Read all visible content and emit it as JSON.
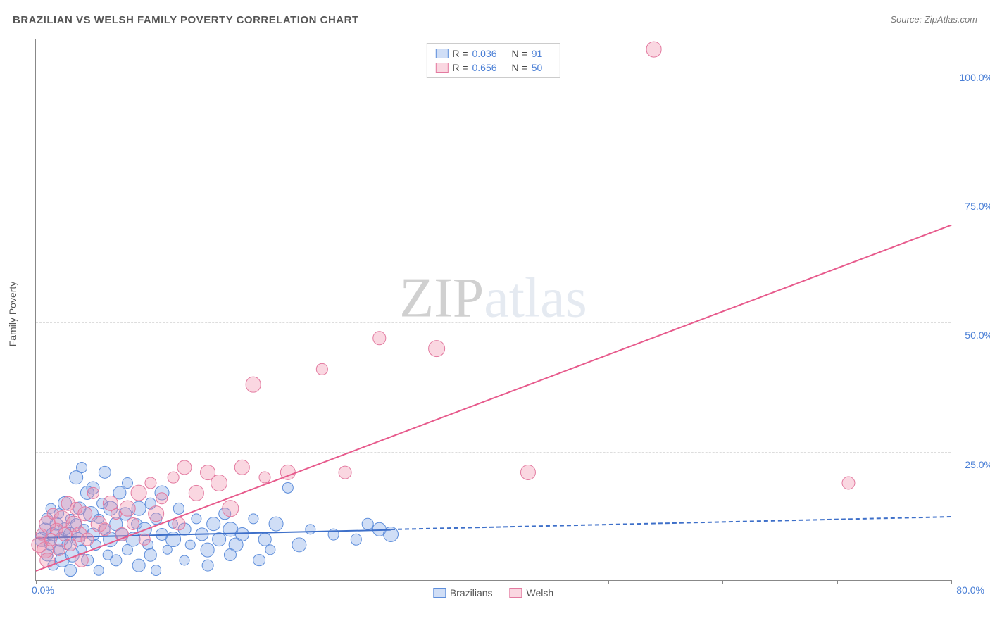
{
  "title": "BRAZILIAN VS WELSH FAMILY POVERTY CORRELATION CHART",
  "source_label": "Source: ZipAtlas.com",
  "ylabel": "Family Poverty",
  "watermark": {
    "zip": "ZIP",
    "atlas": "atlas"
  },
  "chart": {
    "type": "scatter",
    "background_color": "#ffffff",
    "grid_color": "#dddddd",
    "axis_color": "#888888",
    "xlim": [
      0,
      80
    ],
    "ylim": [
      0,
      105
    ],
    "xtick_positions": [
      0,
      10,
      20,
      30,
      40,
      50,
      60,
      70,
      80
    ],
    "xtick_labels_shown": {
      "0": "0.0%",
      "80": "80.0%"
    },
    "ytick_positions": [
      25,
      50,
      75,
      100
    ],
    "ytick_labels": [
      "25.0%",
      "50.0%",
      "75.0%",
      "100.0%"
    ],
    "label_color": "#4a7fd6",
    "label_fontsize": 14,
    "series": [
      {
        "name": "Brazilians",
        "fill_color": "rgba(120,160,230,0.35)",
        "stroke_color": "#5e8edb",
        "marker_radius_base": 7,
        "points": [
          [
            0.5,
            8
          ],
          [
            0.8,
            10
          ],
          [
            1,
            12
          ],
          [
            1,
            5
          ],
          [
            1.2,
            7
          ],
          [
            1.3,
            14
          ],
          [
            1.5,
            9
          ],
          [
            1.5,
            3
          ],
          [
            1.8,
            11
          ],
          [
            2,
            6
          ],
          [
            2,
            13
          ],
          [
            2.2,
            8
          ],
          [
            2.3,
            4
          ],
          [
            2.5,
            15
          ],
          [
            2.5,
            10
          ],
          [
            2.7,
            7
          ],
          [
            3,
            12
          ],
          [
            3,
            2
          ],
          [
            3,
            9
          ],
          [
            3.2,
            5
          ],
          [
            3.5,
            20
          ],
          [
            3.5,
            11
          ],
          [
            3.7,
            8
          ],
          [
            3.8,
            14
          ],
          [
            4,
            6
          ],
          [
            4,
            22
          ],
          [
            4.2,
            10
          ],
          [
            4.5,
            17
          ],
          [
            4.5,
            4
          ],
          [
            4.8,
            13
          ],
          [
            5,
            9
          ],
          [
            5,
            18
          ],
          [
            5.2,
            7
          ],
          [
            5.5,
            2
          ],
          [
            5.5,
            12
          ],
          [
            5.8,
            15
          ],
          [
            6,
            10
          ],
          [
            6,
            21
          ],
          [
            6.3,
            5
          ],
          [
            6.5,
            8
          ],
          [
            6.5,
            14
          ],
          [
            7,
            11
          ],
          [
            7,
            4
          ],
          [
            7.3,
            17
          ],
          [
            7.5,
            9
          ],
          [
            7.8,
            13
          ],
          [
            8,
            6
          ],
          [
            8,
            19
          ],
          [
            8.5,
            8
          ],
          [
            8.8,
            11
          ],
          [
            9,
            14
          ],
          [
            9,
            3
          ],
          [
            9.5,
            10
          ],
          [
            9.8,
            7
          ],
          [
            10,
            15
          ],
          [
            10,
            5
          ],
          [
            10.5,
            12
          ],
          [
            10.5,
            2
          ],
          [
            11,
            9
          ],
          [
            11,
            17
          ],
          [
            11.5,
            6
          ],
          [
            12,
            11
          ],
          [
            12,
            8
          ],
          [
            12.5,
            14
          ],
          [
            13,
            4
          ],
          [
            13,
            10
          ],
          [
            13.5,
            7
          ],
          [
            14,
            12
          ],
          [
            14.5,
            9
          ],
          [
            15,
            6
          ],
          [
            15,
            3
          ],
          [
            15.5,
            11
          ],
          [
            16,
            8
          ],
          [
            16.5,
            13
          ],
          [
            17,
            5
          ],
          [
            17,
            10
          ],
          [
            17.5,
            7
          ],
          [
            18,
            9
          ],
          [
            19,
            12
          ],
          [
            19.5,
            4
          ],
          [
            20,
            8
          ],
          [
            20.5,
            6
          ],
          [
            21,
            11
          ],
          [
            22,
            18
          ],
          [
            23,
            7
          ],
          [
            24,
            10
          ],
          [
            26,
            9
          ],
          [
            28,
            8
          ],
          [
            29,
            11
          ],
          [
            30,
            10
          ],
          [
            31,
            9
          ]
        ],
        "trend": {
          "x1": 0,
          "y1": 8.5,
          "x2": 80,
          "y2": 12.5,
          "solid_until_x": 31,
          "color": "#3d6fc9",
          "width": 2
        }
      },
      {
        "name": "Welsh",
        "fill_color": "rgba(240,140,170,0.35)",
        "stroke_color": "#e37aa0",
        "marker_radius_base": 8,
        "points": [
          [
            0.3,
            7
          ],
          [
            0.5,
            9
          ],
          [
            0.8,
            6
          ],
          [
            1,
            11
          ],
          [
            1,
            4
          ],
          [
            1.3,
            8
          ],
          [
            1.5,
            13
          ],
          [
            1.8,
            10
          ],
          [
            2,
            6
          ],
          [
            2.3,
            12
          ],
          [
            2.5,
            9
          ],
          [
            2.8,
            15
          ],
          [
            3,
            7
          ],
          [
            3.3,
            11
          ],
          [
            3.5,
            14
          ],
          [
            3.8,
            9
          ],
          [
            4,
            4
          ],
          [
            4.3,
            13
          ],
          [
            4.5,
            8
          ],
          [
            5,
            17
          ],
          [
            5.5,
            11
          ],
          [
            6,
            10
          ],
          [
            6.5,
            15
          ],
          [
            7,
            13
          ],
          [
            7.5,
            9
          ],
          [
            8,
            14
          ],
          [
            8.5,
            11
          ],
          [
            9,
            17
          ],
          [
            9.5,
            8
          ],
          [
            10,
            19
          ],
          [
            10.5,
            13
          ],
          [
            11,
            16
          ],
          [
            12,
            20
          ],
          [
            12.5,
            11
          ],
          [
            13,
            22
          ],
          [
            14,
            17
          ],
          [
            15,
            21
          ],
          [
            16,
            19
          ],
          [
            17,
            14
          ],
          [
            18,
            22
          ],
          [
            19,
            38
          ],
          [
            20,
            20
          ],
          [
            22,
            21
          ],
          [
            25,
            41
          ],
          [
            27,
            21
          ],
          [
            30,
            47
          ],
          [
            35,
            45
          ],
          [
            43,
            21
          ],
          [
            54,
            103
          ],
          [
            71,
            19
          ]
        ],
        "trend": {
          "x1": 0,
          "y1": 2,
          "x2": 80,
          "y2": 69,
          "solid_until_x": 80,
          "color": "#e75a8c",
          "width": 2
        }
      }
    ]
  },
  "stats_box": {
    "rows": [
      {
        "swatch_fill": "rgba(120,160,230,0.35)",
        "swatch_stroke": "#5e8edb",
        "r_label": "R =",
        "r_value": "0.036",
        "n_label": "N =",
        "n_value": "91"
      },
      {
        "swatch_fill": "rgba(240,140,170,0.35)",
        "swatch_stroke": "#e37aa0",
        "r_label": "R =",
        "r_value": "0.656",
        "n_label": "N =",
        "n_value": "50"
      }
    ]
  },
  "legend_bottom": [
    {
      "swatch_fill": "rgba(120,160,230,0.35)",
      "swatch_stroke": "#5e8edb",
      "label": "Brazilians"
    },
    {
      "swatch_fill": "rgba(240,140,170,0.35)",
      "swatch_stroke": "#e37aa0",
      "label": "Welsh"
    }
  ]
}
